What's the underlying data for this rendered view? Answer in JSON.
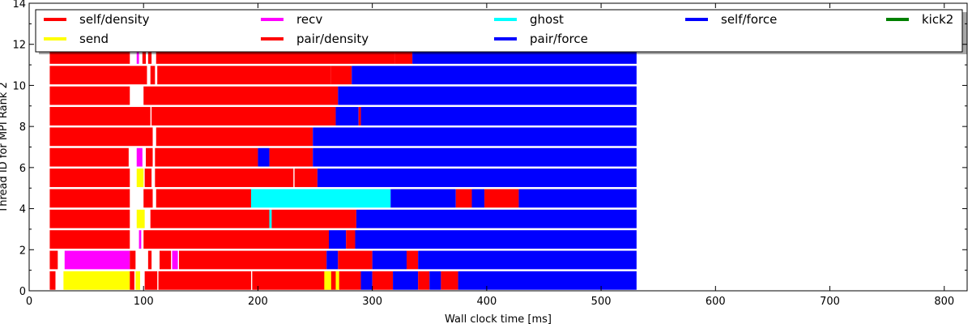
{
  "chart_data": {
    "type": "bar",
    "orientation": "horizontal-gantt",
    "xlabel": "Wall clock time [ms]",
    "ylabel": "Thread ID for MPI Rank 2",
    "xlim": [
      0,
      820
    ],
    "ylim": [
      0,
      14
    ],
    "xticks": [
      0,
      100,
      200,
      300,
      400,
      500,
      600,
      700,
      800
    ],
    "yticks": [
      0,
      2,
      4,
      6,
      8,
      10,
      12,
      14
    ],
    "grid": false,
    "legend_position": "top",
    "legend": [
      {
        "name": "self/density",
        "color": "#ff0000"
      },
      {
        "name": "send",
        "color": "#ffff00"
      },
      {
        "name": "recv",
        "color": "#ff00ff"
      },
      {
        "name": "pair/density",
        "color": "#ff0000"
      },
      {
        "name": "ghost",
        "color": "#00ffff"
      },
      {
        "name": "pair/force",
        "color": "#0000ff"
      },
      {
        "name": "self/force",
        "color": "#0000ff"
      },
      {
        "name": "kick2",
        "color": "#008000"
      }
    ],
    "colors": {
      "self/density": "#ff0000",
      "pair/density": "#ff0000",
      "send": "#ffff00",
      "recv": "#ff00ff",
      "ghost": "#00ffff",
      "pair/force": "#0000ff",
      "self/force": "#0000ff",
      "kick2": "#008000"
    },
    "threads": [
      {
        "thread": 0,
        "tasks": [
          [
            "self/density",
            18,
            23
          ],
          [
            "send",
            30,
            88
          ],
          [
            "self/density",
            88,
            92
          ],
          [
            "send",
            93,
            97
          ],
          [
            "self/density",
            101,
            112
          ],
          [
            "pair/density",
            113,
            194
          ],
          [
            "pair/density",
            195,
            270
          ],
          [
            "send",
            258,
            264
          ],
          [
            "send",
            268,
            272
          ],
          [
            "pair/density",
            271,
            290
          ],
          [
            "pair/force",
            290,
            300
          ],
          [
            "pair/density",
            300,
            318
          ],
          [
            "pair/force",
            318,
            340
          ],
          [
            "pair/density",
            340,
            350
          ],
          [
            "pair/force",
            350,
            360
          ],
          [
            "pair/density",
            360,
            375
          ],
          [
            "pair/force",
            375,
            531
          ]
        ]
      },
      {
        "thread": 1,
        "tasks": [
          [
            "self/density",
            18,
            25
          ],
          [
            "recv",
            31,
            88
          ],
          [
            "self/density",
            88,
            93
          ],
          [
            "self/density",
            104,
            107
          ],
          [
            "pair/density",
            114,
            124
          ],
          [
            "recv",
            125,
            130
          ],
          [
            "pair/density",
            131,
            260
          ],
          [
            "pair/force",
            260,
            270
          ],
          [
            "pair/density",
            270,
            300
          ],
          [
            "pair/force",
            300,
            330
          ],
          [
            "pair/density",
            330,
            340
          ],
          [
            "pair/force",
            340,
            531
          ]
        ]
      },
      {
        "thread": 2,
        "tasks": [
          [
            "self/density",
            18,
            88
          ],
          [
            "recv",
            96,
            98
          ],
          [
            "pair/density",
            100,
            262
          ],
          [
            "pair/force",
            262,
            277
          ],
          [
            "pair/density",
            277,
            285
          ],
          [
            "pair/force",
            285,
            531
          ]
        ]
      },
      {
        "thread": 3,
        "tasks": [
          [
            "self/density",
            18,
            88
          ],
          [
            "send",
            94,
            101
          ],
          [
            "pair/density",
            106,
            210
          ],
          [
            "ghost",
            210,
            212
          ],
          [
            "pair/density",
            212,
            286
          ],
          [
            "pair/force",
            286,
            531
          ]
        ]
      },
      {
        "thread": 4,
        "tasks": [
          [
            "self/density",
            18,
            88
          ],
          [
            "pair/density",
            100,
            108
          ],
          [
            "pair/density",
            111,
            194
          ],
          [
            "ghost",
            194,
            316
          ],
          [
            "pair/force",
            316,
            373
          ],
          [
            "pair/density",
            373,
            387
          ],
          [
            "pair/force",
            387,
            398
          ],
          [
            "pair/density",
            398,
            428
          ],
          [
            "pair/force",
            428,
            531
          ]
        ]
      },
      {
        "thread": 5,
        "tasks": [
          [
            "self/density",
            18,
            88
          ],
          [
            "send",
            94,
            100
          ],
          [
            "self/density",
            101,
            107
          ],
          [
            "pair/density",
            110,
            231
          ],
          [
            "pair/density",
            232,
            252
          ],
          [
            "pair/force",
            252,
            531
          ]
        ]
      },
      {
        "thread": 6,
        "tasks": [
          [
            "self/density",
            18,
            87
          ],
          [
            "recv",
            94,
            99
          ],
          [
            "self/density",
            102,
            108
          ],
          [
            "pair/density",
            110,
            200
          ],
          [
            "pair/force",
            200,
            210
          ],
          [
            "pair/density",
            210,
            248
          ],
          [
            "pair/force",
            248,
            531
          ]
        ]
      },
      {
        "thread": 7,
        "tasks": [
          [
            "self/density",
            18,
            108
          ],
          [
            "pair/density",
            111,
            248
          ],
          [
            "pair/force",
            248,
            531
          ]
        ]
      },
      {
        "thread": 8,
        "tasks": [
          [
            "self/density",
            18,
            106
          ],
          [
            "pair/density",
            107,
            268
          ],
          [
            "pair/force",
            268,
            288
          ],
          [
            "pair/density",
            288,
            290
          ],
          [
            "pair/force",
            290,
            531
          ]
        ]
      },
      {
        "thread": 9,
        "tasks": [
          [
            "self/density",
            18,
            88
          ],
          [
            "pair/density",
            100,
            262
          ],
          [
            "pair/density",
            262,
            270
          ],
          [
            "pair/force",
            270,
            531
          ]
        ]
      },
      {
        "thread": 10,
        "tasks": [
          [
            "self/density",
            18,
            103
          ],
          [
            "self/density",
            106,
            110
          ],
          [
            "pair/density",
            112,
            264
          ],
          [
            "pair/density",
            264,
            282
          ],
          [
            "pair/force",
            282,
            531
          ]
        ]
      },
      {
        "thread": 11,
        "tasks": [
          [
            "self/density",
            18,
            88
          ],
          [
            "recv",
            94,
            96
          ],
          [
            "self/density",
            99,
            102
          ],
          [
            "self/density",
            104,
            107
          ],
          [
            "pair/density",
            111,
            320
          ],
          [
            "pair/density",
            320,
            335
          ],
          [
            "pair/force",
            335,
            531
          ]
        ]
      }
    ]
  }
}
